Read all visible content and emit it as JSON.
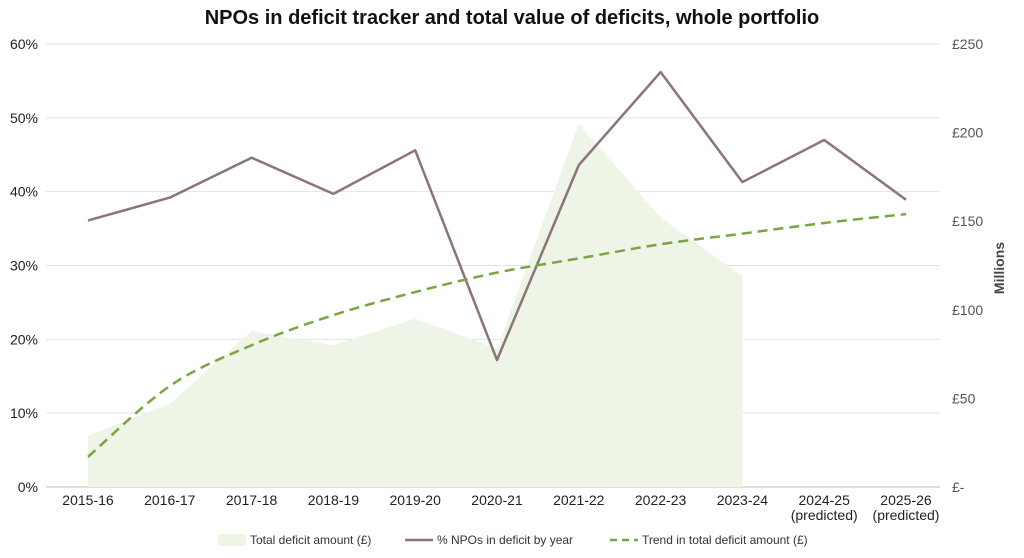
{
  "chart_data": {
    "type": "line",
    "title": "NPOs in deficit tracker and total value of deficits, whole portfolio",
    "categories": [
      [
        "2015-16"
      ],
      [
        "2016-17"
      ],
      [
        "2017-18"
      ],
      [
        "2018-19"
      ],
      [
        "2019-20"
      ],
      [
        "2020-21"
      ],
      [
        "2021-22"
      ],
      [
        "2022-23"
      ],
      [
        "2023-24"
      ],
      [
        "2024-25",
        "(predicted)"
      ],
      [
        "2025-26",
        "(predicted)"
      ]
    ],
    "y_left": {
      "ticks": [
        "0%",
        "10%",
        "20%",
        "30%",
        "40%",
        "50%",
        "60%"
      ],
      "ylim": [
        0,
        60
      ]
    },
    "y_right": {
      "label": "Millions",
      "ticks": [
        "£-",
        "£50",
        "£100",
        "£150",
        "£200",
        "£250"
      ],
      "ylim": [
        0,
        250
      ]
    },
    "series": [
      {
        "name": "Total deficit amount (£)",
        "kind": "area",
        "axis": "right",
        "color": "#eef4e6",
        "values": [
          29,
          47,
          88,
          80,
          95,
          78,
          205,
          152,
          119,
          null,
          null
        ]
      },
      {
        "name": "% NPOs in deficit by year",
        "kind": "line",
        "axis": "left",
        "color": "#8c7479",
        "values": [
          36.1,
          39.2,
          44.6,
          39.7,
          45.6,
          17.2,
          43.6,
          56.2,
          41.3,
          47.0,
          38.9
        ]
      },
      {
        "name": "Trend in total deficit amount (£)",
        "kind": "dashed",
        "axis": "right",
        "color": "#78a640",
        "values": [
          17,
          57,
          80,
          97,
          110,
          121,
          129,
          137,
          143,
          149,
          154
        ]
      }
    ],
    "grid": true,
    "legend_position": "bottom"
  }
}
